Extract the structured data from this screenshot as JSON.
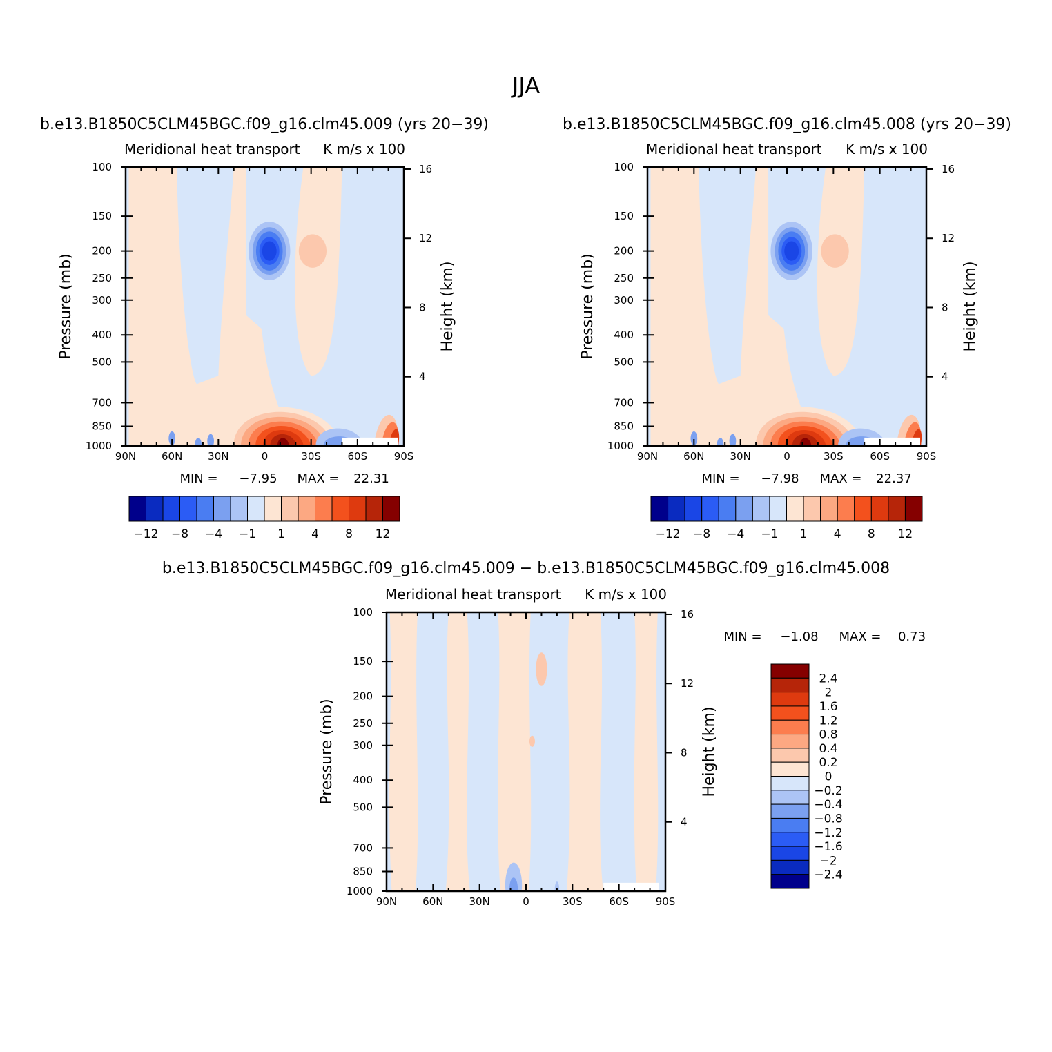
{
  "figure": {
    "title": "JJA"
  },
  "palette": {
    "colors": [
      "#00008b",
      "#0a2bc0",
      "#1a46e6",
      "#2b5cf5",
      "#4a7df2",
      "#7ba0f0",
      "#acc4f5",
      "#d7e6fa",
      "#fde5d3",
      "#fcc8ad",
      "#fca882",
      "#fc7d4e",
      "#f3511d",
      "#de3a0f",
      "#b62509",
      "#850000"
    ],
    "zero_blue": "#d7e6fa",
    "zero_red": "#fde5d3"
  },
  "chart_data": [
    {
      "type": "heatmap",
      "id": "panel-009",
      "panel_title": "b.e13.B1850C5CLM45BGC.f09_g16.clm45.009 (yrs 20−39)",
      "variable_label": "Meridional heat transport",
      "units_label": "K m/s x 100",
      "x_ticks": [
        "90N",
        "60N",
        "30N",
        "0",
        "30S",
        "60S",
        "90S"
      ],
      "x_values": [
        90,
        60,
        30,
        0,
        -30,
        -60,
        -90
      ],
      "xlim": [
        90,
        -90
      ],
      "y_ticks": [
        "100",
        "150",
        "200",
        "250",
        "300",
        "400",
        "500",
        "700",
        "850",
        "1000"
      ],
      "y_values": [
        100,
        150,
        200,
        250,
        300,
        400,
        500,
        700,
        850,
        1000
      ],
      "ylim_pressure_mb": [
        100,
        1000
      ],
      "ylabel": "Pressure (mb)",
      "y2_ticks": [
        "16",
        "12",
        "8",
        "4"
      ],
      "y2_values": [
        16,
        12,
        8,
        4
      ],
      "y2label": "Height (km)",
      "min_label": "MIN =",
      "min": "−7.95",
      "max_label": "MAX =",
      "max": "22.31",
      "features": [
        {
          "lat": 2,
          "p": 200,
          "value": -10
        },
        {
          "lat": -13,
          "p": 960,
          "value": 14
        },
        {
          "lat": -30,
          "p": 200,
          "value": 2
        },
        {
          "lat": -55,
          "p": 900,
          "value": -3
        },
        {
          "lat": -85,
          "p": 900,
          "value": 8
        }
      ],
      "colorbar": {
        "orientation": "horizontal",
        "levels": [
          "−12",
          "−8",
          "−4",
          "−1",
          "1",
          "4",
          "8",
          "12"
        ],
        "level_values": [
          -12,
          -8,
          -4,
          -1,
          1,
          4,
          8,
          12
        ]
      }
    },
    {
      "type": "heatmap",
      "id": "panel-008",
      "panel_title": "b.e13.B1850C5CLM45BGC.f09_g16.clm45.008 (yrs 20−39)",
      "variable_label": "Meridional heat transport",
      "units_label": "K m/s x 100",
      "x_ticks": [
        "90N",
        "60N",
        "30N",
        "0",
        "30S",
        "60S",
        "90S"
      ],
      "x_values": [
        90,
        60,
        30,
        0,
        -30,
        -60,
        -90
      ],
      "xlim": [
        90,
        -90
      ],
      "y_ticks": [
        "100",
        "150",
        "200",
        "250",
        "300",
        "400",
        "500",
        "700",
        "850",
        "1000"
      ],
      "y_values": [
        100,
        150,
        200,
        250,
        300,
        400,
        500,
        700,
        850,
        1000
      ],
      "ylim_pressure_mb": [
        100,
        1000
      ],
      "ylabel": "Pressure (mb)",
      "y2_ticks": [
        "16",
        "12",
        "8",
        "4"
      ],
      "y2_values": [
        16,
        12,
        8,
        4
      ],
      "y2label": "Height (km)",
      "min_label": "MIN =",
      "min": "−7.98",
      "max_label": "MAX =",
      "max": "22.37",
      "features": [
        {
          "lat": 2,
          "p": 200,
          "value": -10
        },
        {
          "lat": -13,
          "p": 960,
          "value": 14
        },
        {
          "lat": -30,
          "p": 200,
          "value": 2
        },
        {
          "lat": -55,
          "p": 900,
          "value": -3
        },
        {
          "lat": -85,
          "p": 900,
          "value": 8
        }
      ],
      "colorbar": {
        "orientation": "horizontal",
        "levels": [
          "−12",
          "−8",
          "−4",
          "−1",
          "1",
          "4",
          "8",
          "12"
        ],
        "level_values": [
          -12,
          -8,
          -4,
          -1,
          1,
          4,
          8,
          12
        ]
      }
    },
    {
      "type": "heatmap",
      "id": "panel-diff",
      "panel_title": "b.e13.B1850C5CLM45BGC.f09_g16.clm45.009 − b.e13.B1850C5CLM45BGC.f09_g16.clm45.008",
      "variable_label": "Meridional heat transport",
      "units_label": "K m/s x 100",
      "x_ticks": [
        "90N",
        "60N",
        "30N",
        "0",
        "30S",
        "60S",
        "90S"
      ],
      "x_values": [
        90,
        60,
        30,
        0,
        -30,
        -60,
        -90
      ],
      "xlim": [
        90,
        -90
      ],
      "y_ticks": [
        "100",
        "150",
        "200",
        "250",
        "300",
        "400",
        "500",
        "700",
        "850",
        "1000"
      ],
      "y_values": [
        100,
        150,
        200,
        250,
        300,
        400,
        500,
        700,
        850,
        1000
      ],
      "ylim_pressure_mb": [
        100,
        1000
      ],
      "ylabel": "Pressure (mb)",
      "y2_ticks": [
        "16",
        "12",
        "8",
        "4"
      ],
      "y2_values": [
        16,
        12,
        8,
        4
      ],
      "y2label": "Height (km)",
      "min_label": "MIN =",
      "min": "−1.08",
      "max_label": "MAX =",
      "max": "0.73",
      "features": [
        {
          "lat": 10,
          "p": 920,
          "value": -0.6
        },
        {
          "lat": -10,
          "p": 150,
          "value": 0.3
        }
      ],
      "colorbar": {
        "orientation": "vertical",
        "levels": [
          "2.4",
          "2",
          "1.6",
          "1.2",
          "0.8",
          "0.4",
          "0.2",
          "0",
          "−0.2",
          "−0.4",
          "−0.8",
          "−1.2",
          "−1.6",
          "−2",
          "−2.4"
        ],
        "level_values": [
          2.4,
          2,
          1.6,
          1.2,
          0.8,
          0.4,
          0.2,
          0,
          -0.2,
          -0.4,
          -0.8,
          -1.2,
          -1.6,
          -2,
          -2.4
        ]
      }
    }
  ]
}
